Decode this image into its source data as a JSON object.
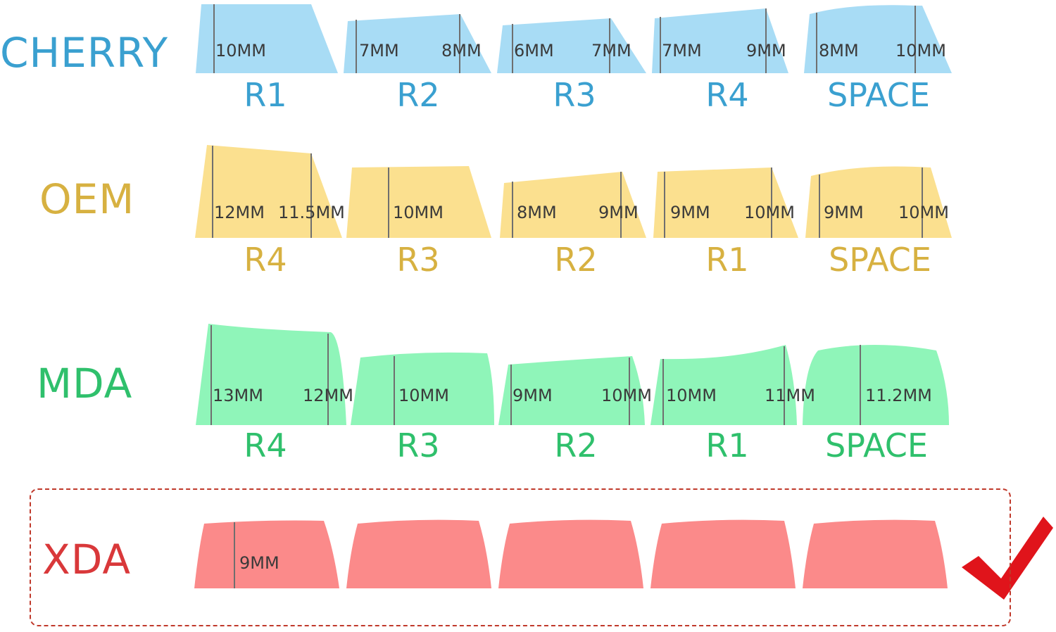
{
  "colors": {
    "cherry": "#a8dcf5",
    "cherry_text": "#3aa0d0",
    "oem": "#fbe08f",
    "oem_text": "#d7b141",
    "mda": "#8ff5b9",
    "mda_text": "#2fc06c",
    "xda": "#fb8a8a",
    "xda_text": "#d9383a",
    "guide": "#6f6f6f",
    "check": "#e0141b",
    "box": "#c0392b"
  },
  "profiles": [
    {
      "name": "CHERRY",
      "keys": [
        {
          "row": "R1",
          "heights": [
            "10MM"
          ]
        },
        {
          "row": "R2",
          "heights": [
            "7MM",
            "8MM"
          ]
        },
        {
          "row": "R3",
          "heights": [
            "6MM",
            "7MM"
          ]
        },
        {
          "row": "R4",
          "heights": [
            "7MM",
            "9MM"
          ]
        },
        {
          "row": "SPACE",
          "heights": [
            "8MM",
            "10MM"
          ]
        }
      ]
    },
    {
      "name": "OEM",
      "keys": [
        {
          "row": "R4",
          "heights": [
            "12MM",
            "11.5MM"
          ]
        },
        {
          "row": "R3",
          "heights": [
            "10MM"
          ]
        },
        {
          "row": "R2",
          "heights": [
            "8MM",
            "9MM"
          ]
        },
        {
          "row": "R1",
          "heights": [
            "9MM",
            "10MM"
          ]
        },
        {
          "row": "SPACE",
          "heights": [
            "9MM",
            "10MM"
          ]
        }
      ]
    },
    {
      "name": "MDA",
      "keys": [
        {
          "row": "R4",
          "heights": [
            "13MM",
            "12MM"
          ]
        },
        {
          "row": "R3",
          "heights": [
            "10MM"
          ]
        },
        {
          "row": "R2",
          "heights": [
            "9MM",
            "10MM"
          ]
        },
        {
          "row": "R1",
          "heights": [
            "10MM",
            "11MM"
          ]
        },
        {
          "row": "SPACE",
          "heights": [
            "11.2MM"
          ]
        }
      ]
    },
    {
      "name": "XDA",
      "keys": [
        {
          "heights": [
            "9MM"
          ]
        }
      ]
    }
  ]
}
